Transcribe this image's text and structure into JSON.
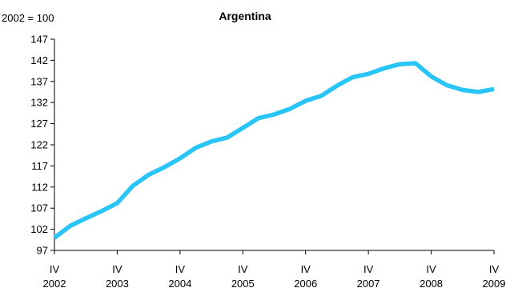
{
  "chart_data": {
    "type": "line",
    "title": "Argentina",
    "unit_label": "2002 = 100",
    "xlabel": "",
    "ylabel": "",
    "ylim": [
      97,
      147
    ],
    "yticks": [
      97,
      102,
      107,
      112,
      117,
      122,
      127,
      132,
      137,
      142,
      147
    ],
    "xlim": [
      0,
      28
    ],
    "xticks": [
      {
        "pos": 0,
        "line1": "IV",
        "line2": "2002"
      },
      {
        "pos": 4,
        "line1": "IV",
        "line2": "2003"
      },
      {
        "pos": 8,
        "line1": "IV",
        "line2": "2004"
      },
      {
        "pos": 12,
        "line1": "IV",
        "line2": "2005"
      },
      {
        "pos": 16,
        "line1": "IV",
        "line2": "2006"
      },
      {
        "pos": 20,
        "line1": "IV",
        "line2": "2007"
      },
      {
        "pos": 24,
        "line1": "IV",
        "line2": "2008"
      },
      {
        "pos": 28,
        "line1": "IV",
        "line2": "2009"
      }
    ],
    "grid": false,
    "series": [
      {
        "name": "",
        "color": "#29c5f6",
        "values": [
          100,
          102.8,
          104.6,
          106.3,
          108.2,
          112.3,
          114.9,
          116.7,
          118.8,
          121.3,
          122.8,
          123.7,
          126.0,
          128.3,
          129.2,
          130.5,
          132.4,
          133.6,
          136.0,
          138.0,
          138.8,
          140.1,
          141.1,
          141.3,
          138.2,
          136.1,
          135.0,
          134.5,
          135.2
        ]
      }
    ]
  }
}
